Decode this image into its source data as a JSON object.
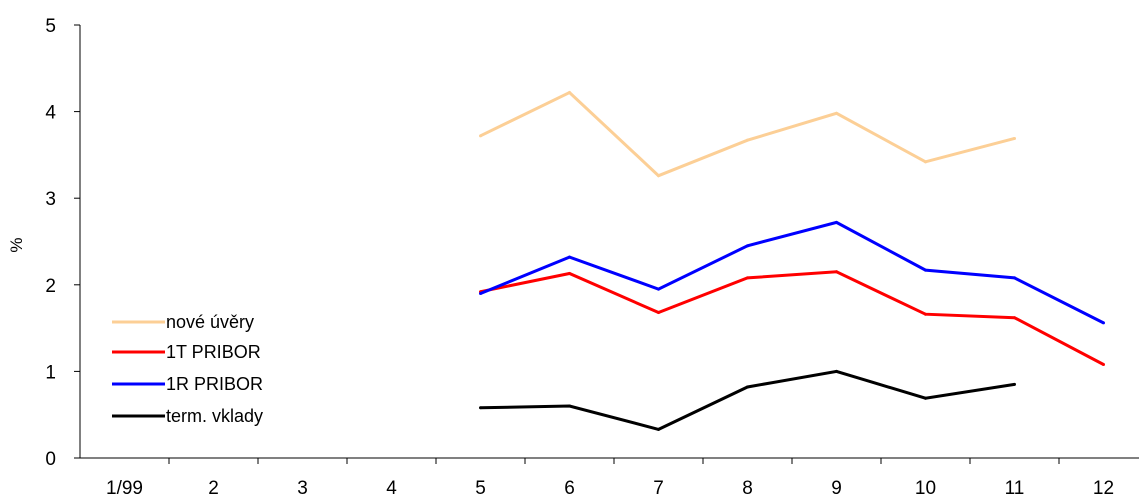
{
  "chart_data": {
    "type": "line",
    "title": "",
    "xlabel": "",
    "ylabel": "%",
    "ylim": [
      0,
      5
    ],
    "yticks": [
      0,
      1,
      2,
      3,
      4,
      5
    ],
    "categories": [
      "1/99",
      "2",
      "3",
      "4",
      "5",
      "6",
      "7",
      "8",
      "9",
      "10",
      "11",
      "12"
    ],
    "grid": false,
    "legend_position": "bottom-left",
    "series": [
      {
        "name": "nové úvěry",
        "color": "#FCCF96",
        "values": [
          null,
          null,
          null,
          null,
          3.72,
          4.22,
          3.26,
          3.67,
          3.98,
          3.42,
          3.69,
          null
        ]
      },
      {
        "name": "1T PRIBOR",
        "color": "#FF0000",
        "values": [
          null,
          null,
          null,
          null,
          1.92,
          2.13,
          1.68,
          2.08,
          2.15,
          1.66,
          1.62,
          1.08
        ]
      },
      {
        "name": "1R PRIBOR",
        "color": "#0000FF",
        "values": [
          null,
          null,
          null,
          null,
          1.9,
          2.32,
          1.95,
          2.45,
          2.72,
          2.17,
          2.08,
          1.56
        ]
      },
      {
        "name": "term. vklady",
        "color": "#000000",
        "values": [
          null,
          null,
          null,
          null,
          0.58,
          0.6,
          0.33,
          0.82,
          1.0,
          0.69,
          0.85,
          null
        ]
      }
    ]
  }
}
